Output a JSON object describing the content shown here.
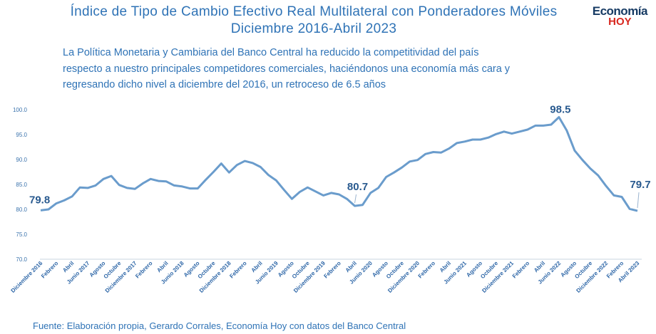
{
  "header": {
    "title_line1": "Índice de Tipo de Cambio Efectivo Real Multilateral con Ponderadores Móviles",
    "title_line2": "Diciembre 2016-Abril 2023",
    "brand_top": "Economía",
    "brand_bottom": "HOY"
  },
  "subtitle": {
    "line1": "La Política Monetaria y Cambiaria del Banco Central ha reducido la competitividad del país",
    "line2": "respecto a nuestro principales competidores comerciales, haciéndonos una economía más cara y",
    "line3": "regresando dicho nivel a diciembre del 2016, un retroceso de 6.5 años"
  },
  "footer": {
    "source": "Fuente: Elaboración propia, Gerardo Corrales, Economía Hoy con datos del Banco Central"
  },
  "colors": {
    "line": "#6a9ccc",
    "title": "#2f73b6",
    "brand_dark": "#163a63",
    "brand_red": "#d8281f"
  },
  "chart_data": {
    "type": "line",
    "ylim": [
      70,
      100
    ],
    "yticks": [
      "100.0",
      "95.0",
      "90.0",
      "85.0",
      "80.0",
      "75.0",
      "70.0"
    ],
    "grid": false,
    "x_labels": [
      "Diciembre 2016",
      "Febrero",
      "Abril",
      "Junio 2017",
      "Agosto",
      "Octubre",
      "Diciembre 2017",
      "Febrero",
      "Abril",
      "Junio 2018",
      "Agosto",
      "Octubre",
      "Diciembre 2018",
      "Febrero",
      "Abril",
      "Junio 2019",
      "Agosto",
      "Octubre",
      "Diciembre 2019",
      "Febrero",
      "Abril",
      "Junio 2020",
      "Agosto",
      "Octubre",
      "Diciembre 2020",
      "Febrero",
      "Abril",
      "Junio 2021",
      "Agosto",
      "Octubre",
      "Diciembre 2021",
      "Febrero",
      "Abril",
      "Junio 2022",
      "Agosto",
      "Octubre",
      "Diciembre 2022",
      "Febrero",
      "Abril 2023"
    ],
    "values": [
      79.8,
      80.0,
      81.2,
      81.8,
      82.6,
      84.4,
      84.3,
      84.8,
      86.1,
      86.7,
      84.9,
      84.3,
      84.1,
      85.2,
      86.1,
      85.7,
      85.6,
      84.8,
      84.6,
      84.2,
      84.2,
      85.9,
      87.5,
      89.2,
      87.4,
      88.9,
      89.7,
      89.3,
      88.5,
      86.9,
      85.8,
      83.9,
      82.1,
      83.5,
      84.4,
      83.6,
      82.8,
      83.3,
      83.0,
      82.1,
      80.7,
      80.9,
      83.3,
      84.3,
      86.5,
      87.4,
      88.4,
      89.6,
      89.9,
      91.1,
      91.5,
      91.4,
      92.2,
      93.3,
      93.6,
      94.0,
      94.0,
      94.4,
      95.1,
      95.6,
      95.2,
      95.6,
      96.0,
      96.8,
      96.8,
      97.0,
      98.5,
      95.8,
      91.8,
      89.9,
      88.2,
      86.8,
      84.7,
      82.8,
      82.5,
      80.1,
      79.7
    ],
    "annotations": [
      {
        "index": 0,
        "label": "79.8"
      },
      {
        "index": 40,
        "label": "80.7"
      },
      {
        "index": 66,
        "label": "98.5"
      },
      {
        "index": 76,
        "label": "79.7"
      }
    ]
  }
}
